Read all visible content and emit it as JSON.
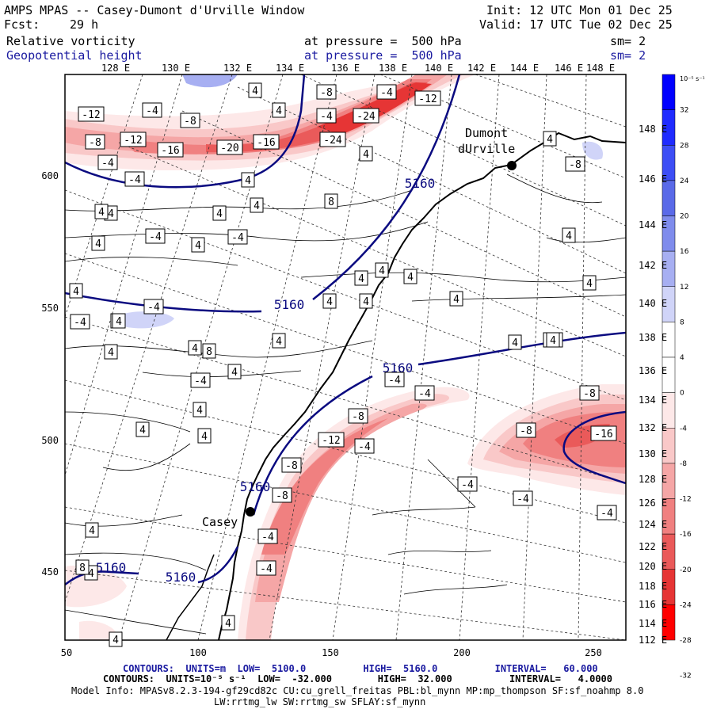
{
  "header": {
    "title": "AMPS MPAS -- Casey-Dumont d'Urville Window",
    "init": "Init: 12 UTC Mon 01 Dec 25",
    "fcst_label": "Fcst:",
    "fcst_value": "29 h",
    "valid": "Valid: 17 UTC Tue 02 Dec 25",
    "field1_name": "Relative vorticity",
    "field1_level": "at pressure =  500 hPa",
    "field1_sm": "sm= 2",
    "field2_name": "Geopotential height",
    "field2_level": "at pressure =  500 hPa",
    "field2_sm": "sm= 2"
  },
  "top_lon_labels": [
    "128 E",
    "130 E",
    "132 E",
    "134 E",
    "136 E",
    "138 E",
    "140 E",
    "142 E",
    "144 E",
    "146 E",
    "148 E"
  ],
  "right_lat_labels": [
    "148 E",
    "146 E",
    "144 E",
    "142 E",
    "140 E",
    "138 E",
    "136 E",
    "134 E",
    "132 E",
    "130 E",
    "128 E",
    "126 E",
    "124 E",
    "122 E",
    "120 E",
    "118 E",
    "116 E",
    "114 E",
    "112 E"
  ],
  "left_axis_labels": [
    "600",
    "550",
    "500",
    "450"
  ],
  "bottom_axis_labels": [
    "50",
    "100",
    "150",
    "200",
    "250"
  ],
  "colorbar": {
    "unit_label": "10⁻⁵ s⁻¹",
    "ticks": [
      "32",
      "28",
      "24",
      "20",
      "16",
      "12",
      "8",
      "4",
      "0",
      "-4",
      "-8",
      "-12",
      "-16",
      "-20",
      "-24",
      "-28",
      "-32"
    ],
    "colors": [
      "#0000ff",
      "#1f2bff",
      "#3d4ef5",
      "#5a6ae8",
      "#7f8cec",
      "#a7aff2",
      "#d0d4f8",
      "#ffffff",
      "#ffffff",
      "#fde8e8",
      "#f9c8c8",
      "#f5a6a6",
      "#f08080",
      "#ea5a5a",
      "#e63535",
      "#ff0000"
    ]
  },
  "stations": [
    {
      "name": "Dumont",
      "name2": "dUrville"
    },
    {
      "name": "Casey"
    }
  ],
  "contour_labels": {
    "height": [
      "5160",
      "5160",
      "5160",
      "5160",
      "5160",
      "5160"
    ],
    "vorticity": [
      "-12",
      "-8",
      "-12",
      "-16",
      "-20",
      "-16",
      "-24",
      "-24",
      "-12",
      "-4",
      "-8",
      "-4",
      "-4",
      "-8",
      "8",
      "4",
      "4",
      "4",
      "4",
      "4",
      "-4",
      "-4",
      "-4",
      "-4",
      "4",
      "4",
      "4",
      "4",
      "4",
      "4",
      "4",
      "4",
      "-4",
      "4",
      "4",
      "4",
      "4",
      "4",
      "4",
      "8",
      "-4",
      "-4",
      "4",
      "4",
      "4",
      "4",
      "4",
      "4",
      "-4",
      "4",
      "-8",
      "-12",
      "-4",
      "-8",
      "-8",
      "-4",
      "-16",
      "-8",
      "-8",
      "-4",
      "-4",
      "-4",
      "-8",
      "4",
      "-4",
      "4",
      "4",
      "-4",
      "-4",
      "4",
      "4",
      "4",
      "8",
      "4",
      "4",
      "4",
      "4"
    ]
  },
  "footer": {
    "line1": "CONTOURS:  UNITS=m  LOW=  5100.0          HIGH=  5160.0          INTERVAL=   60.000",
    "line2": "CONTOURS:  UNITS=10⁻⁵ s⁻¹  LOW=  -32.000        HIGH=  32.000          INTERVAL=   4.0000",
    "line3": "Model Info: MPASv8.2.3-194-gf29cd82c CU:cu_grell_freitas PBL:bl_mynn MP:mp_thompson SF:sf_noahmp 8.0",
    "line4": "LW:rrtmg_lw SW:rrtmg_sw SFLAY:sf_mynn"
  }
}
